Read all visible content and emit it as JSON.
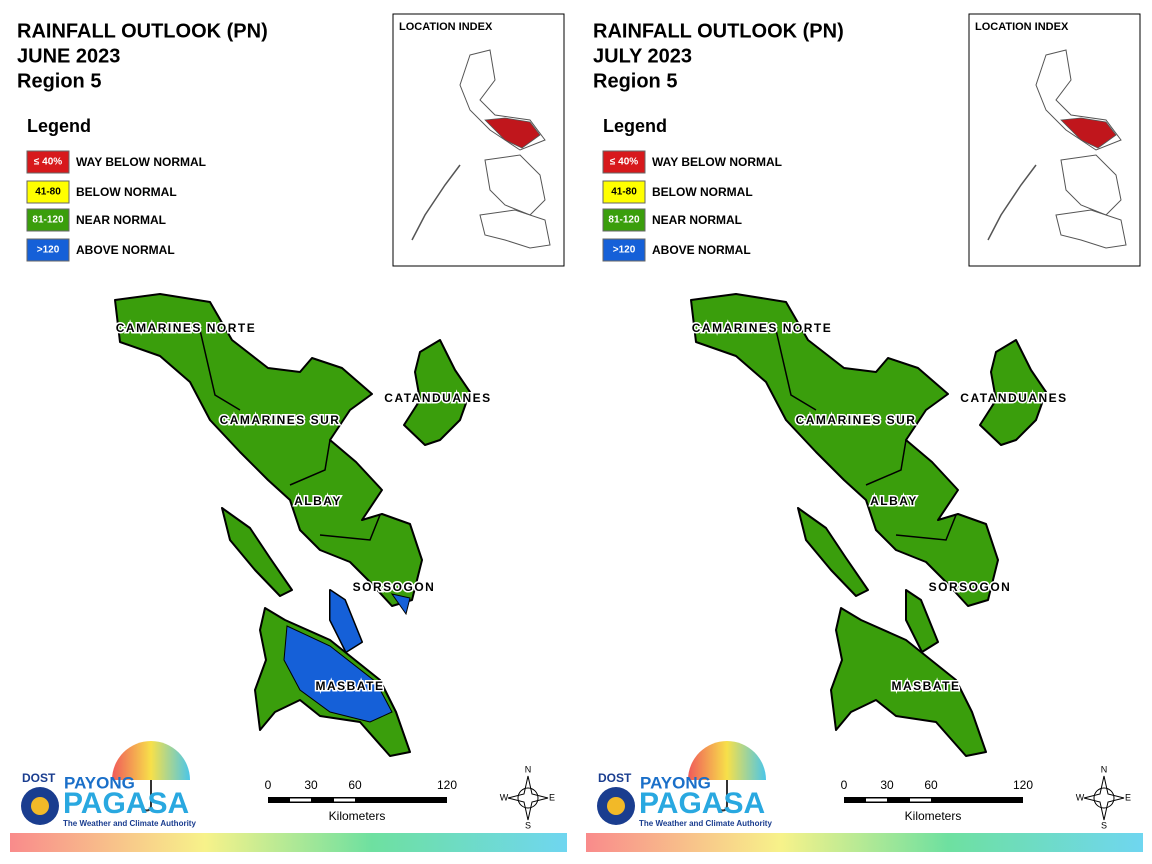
{
  "panels": [
    {
      "title": [
        "RAINFALL OUTLOOK (PN)",
        "JUNE 2023",
        "Region 5"
      ],
      "location_index": "LOCATION INDEX",
      "legend": {
        "title": "Legend",
        "items": [
          {
            "key": "≤ 40%",
            "label": "WAY BELOW NORMAL",
            "color": "#d7191c"
          },
          {
            "key": "41-80",
            "label": "BELOW NORMAL",
            "color": "#ffff00"
          },
          {
            "key": "81-120",
            "label": "NEAR NORMAL",
            "color": "#3a9e0c"
          },
          {
            "key": ">120",
            "label": "ABOVE NORMAL",
            "color": "#1560d8"
          }
        ]
      },
      "provinces": [
        "CAMARINES NORTE",
        "CAMARINES SUR",
        "CATANDUANES",
        "ALBAY",
        "SORSOGON",
        "MASBATE"
      ],
      "scale": {
        "ticks": [
          0,
          30,
          60,
          120
        ],
        "unit": "Kilometers"
      },
      "compass": [
        "N",
        "E",
        "S",
        "W"
      ],
      "logo": {
        "dost": "DOST",
        "payong": "PAYONG",
        "pagasa": "PAGASA",
        "tagline": "The Weather and Climate Authority"
      }
    },
    {
      "title": [
        "RAINFALL OUTLOOK (PN)",
        "JULY 2023",
        "Region 5"
      ],
      "location_index": "LOCATION INDEX",
      "legend": {
        "title": "Legend",
        "items": [
          {
            "key": "≤ 40%",
            "label": "WAY BELOW NORMAL",
            "color": "#d7191c"
          },
          {
            "key": "41-80",
            "label": "BELOW NORMAL",
            "color": "#ffff00"
          },
          {
            "key": "81-120",
            "label": "NEAR NORMAL",
            "color": "#3a9e0c"
          },
          {
            "key": ">120",
            "label": "ABOVE NORMAL",
            "color": "#1560d8"
          }
        ]
      },
      "provinces": [
        "CAMARINES NORTE",
        "CAMARINES SUR",
        "CATANDUANES",
        "ALBAY",
        "SORSOGON",
        "MASBATE"
      ],
      "scale": {
        "ticks": [
          0,
          30,
          60,
          120
        ],
        "unit": "Kilometers"
      },
      "compass": [
        "N",
        "E",
        "S",
        "W"
      ],
      "logo": {
        "dost": "DOST",
        "payong": "PAYONG",
        "pagasa": "PAGASA",
        "tagline": "The Weather and Climate Authority"
      }
    }
  ]
}
